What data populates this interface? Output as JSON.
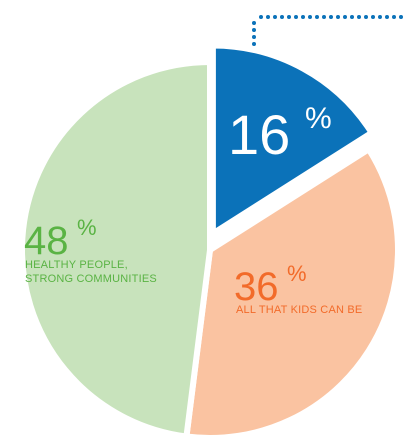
{
  "chart_data": {
    "type": "pie",
    "slices": [
      {
        "value": 16,
        "value_label": "16",
        "percent_sign": "%",
        "label_lines": [],
        "color": "#0b72b9",
        "text_color": "#ffffff",
        "exploded": true
      },
      {
        "value": 36,
        "value_label": "36",
        "percent_sign": "%",
        "label_lines": [
          "ALL THAT KIDS CAN BE"
        ],
        "color": "#fac3a1",
        "text_color": "#f26b2a",
        "exploded": false
      },
      {
        "value": 48,
        "value_label": "48",
        "percent_sign": "%",
        "label_lines": [
          "HEALTHY PEOPLE,",
          "STRONG COMMUNITIES"
        ],
        "color": "#c8e3bc",
        "text_color": "#5ab344",
        "exploded": false
      }
    ],
    "callout_line_color": "#0b72b9"
  }
}
